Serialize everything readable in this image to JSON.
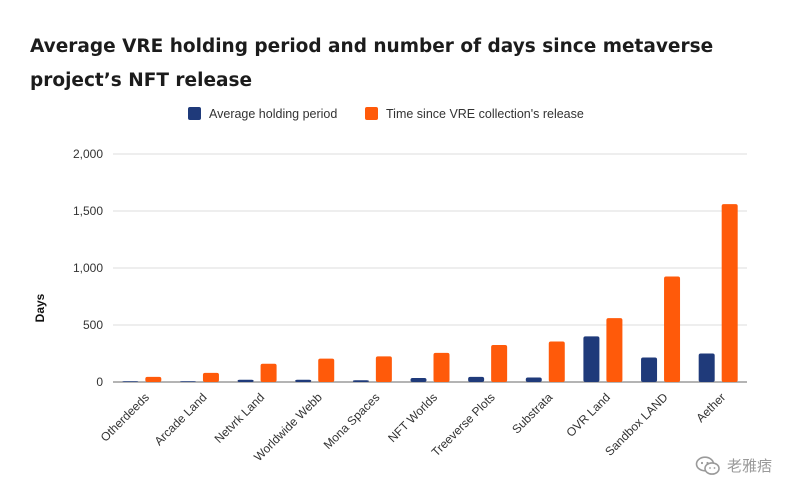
{
  "chart_data": {
    "type": "bar",
    "title": "Average VRE holding period and number of days since metaverse project’s NFT release",
    "ylabel": "Days",
    "xlabel": "",
    "ylim": [
      0,
      2000
    ],
    "yticks": [
      "0",
      "500",
      "1,000",
      "1,500",
      "2,000"
    ],
    "ytick_values": [
      0,
      500,
      1000,
      1500,
      2000
    ],
    "grid": true,
    "legend_position": "top-center",
    "categories": [
      "Otherdeeds",
      "Arcade Land",
      "Netvrk Land",
      "Worldwide Webb",
      "Mona Spaces",
      "NFT Worlds",
      "Treeverse Plots",
      "Substrata",
      "OVR Land",
      "Sandbox LAND",
      "Aether"
    ],
    "series": [
      {
        "name": "Average holding period",
        "color": "#1f3a7a",
        "values": [
          2,
          3,
          20,
          20,
          15,
          35,
          45,
          40,
          400,
          215,
          250
        ]
      },
      {
        "name": "Time since VRE collection's release",
        "color": "#ff5a0a",
        "values": [
          45,
          80,
          160,
          205,
          225,
          255,
          325,
          355,
          560,
          925,
          1560
        ]
      }
    ]
  },
  "watermark": {
    "text": "老雅痞",
    "icon": "wechat-icon"
  }
}
